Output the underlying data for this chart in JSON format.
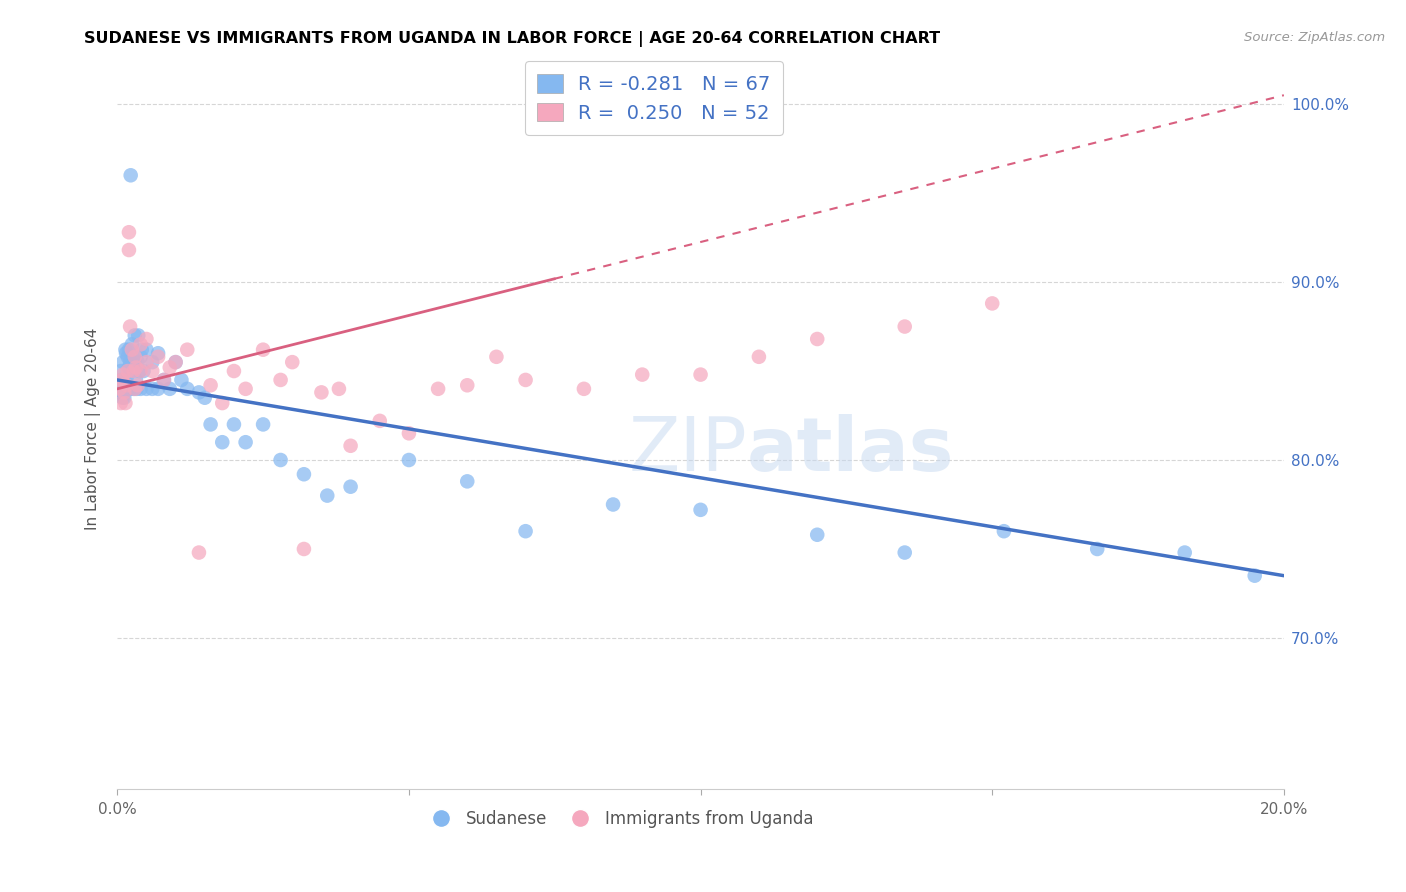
{
  "title": "SUDANESE VS IMMIGRANTS FROM UGANDA IN LABOR FORCE | AGE 20-64 CORRELATION CHART",
  "source": "Source: ZipAtlas.com",
  "ylabel": "In Labor Force | Age 20-64",
  "xlim": [
    0.0,
    0.2
  ],
  "ylim": [
    0.615,
    1.02
  ],
  "xticks": [
    0.0,
    0.05,
    0.1,
    0.15,
    0.2
  ],
  "yticks": [
    0.7,
    0.8,
    0.9,
    1.0
  ],
  "ytick_labels_right": [
    "70.0%",
    "80.0%",
    "90.0%",
    "100.0%"
  ],
  "xtick_labels": [
    "0.0%",
    "",
    "",
    "",
    "20.0%"
  ],
  "R_blue": -0.281,
  "N_blue": 67,
  "R_pink": 0.25,
  "N_pink": 52,
  "blue_scatter_color": "#85b8f0",
  "pink_scatter_color": "#f5a8be",
  "blue_line_color": "#4472c4",
  "pink_line_color": "#d96080",
  "legend_text_color": "#4472c4",
  "watermark_color": "#c5d8f0",
  "sudanese_label": "Sudanese",
  "uganda_label": "Immigrants from Uganda",
  "sudanese_x": [
    0.0004,
    0.0005,
    0.0006,
    0.0007,
    0.0008,
    0.0009,
    0.001,
    0.001,
    0.0012,
    0.0013,
    0.0014,
    0.0015,
    0.0016,
    0.0018,
    0.0018,
    0.002,
    0.002,
    0.0022,
    0.0022,
    0.0023,
    0.0025,
    0.0026,
    0.0028,
    0.003,
    0.003,
    0.0032,
    0.0033,
    0.0035,
    0.0036,
    0.0038,
    0.004,
    0.004,
    0.0042,
    0.0045,
    0.005,
    0.005,
    0.006,
    0.006,
    0.007,
    0.007,
    0.008,
    0.009,
    0.01,
    0.011,
    0.012,
    0.014,
    0.015,
    0.016,
    0.018,
    0.02,
    0.022,
    0.025,
    0.028,
    0.032,
    0.036,
    0.04,
    0.05,
    0.06,
    0.07,
    0.085,
    0.1,
    0.12,
    0.135,
    0.152,
    0.168,
    0.183,
    0.195
  ],
  "sudanese_y": [
    0.84,
    0.838,
    0.85,
    0.845,
    0.842,
    0.835,
    0.855,
    0.84,
    0.835,
    0.842,
    0.862,
    0.86,
    0.845,
    0.858,
    0.84,
    0.852,
    0.862,
    0.855,
    0.84,
    0.96,
    0.865,
    0.85,
    0.84,
    0.855,
    0.87,
    0.845,
    0.84,
    0.855,
    0.87,
    0.85,
    0.858,
    0.84,
    0.862,
    0.85,
    0.862,
    0.84,
    0.855,
    0.84,
    0.86,
    0.84,
    0.845,
    0.84,
    0.855,
    0.845,
    0.84,
    0.838,
    0.835,
    0.82,
    0.81,
    0.82,
    0.81,
    0.82,
    0.8,
    0.792,
    0.78,
    0.785,
    0.8,
    0.788,
    0.76,
    0.775,
    0.772,
    0.758,
    0.748,
    0.76,
    0.75,
    0.748,
    0.735
  ],
  "uganda_x": [
    0.0004,
    0.0006,
    0.0008,
    0.001,
    0.0012,
    0.0014,
    0.0016,
    0.0018,
    0.002,
    0.002,
    0.0022,
    0.0025,
    0.0028,
    0.003,
    0.003,
    0.0032,
    0.0035,
    0.004,
    0.004,
    0.005,
    0.005,
    0.006,
    0.007,
    0.008,
    0.009,
    0.01,
    0.012,
    0.014,
    0.016,
    0.018,
    0.02,
    0.022,
    0.025,
    0.028,
    0.03,
    0.032,
    0.035,
    0.038,
    0.04,
    0.045,
    0.05,
    0.055,
    0.06,
    0.065,
    0.07,
    0.08,
    0.09,
    0.1,
    0.11,
    0.12,
    0.135,
    0.15
  ],
  "uganda_y": [
    0.84,
    0.832,
    0.845,
    0.848,
    0.838,
    0.832,
    0.842,
    0.85,
    0.928,
    0.918,
    0.875,
    0.862,
    0.85,
    0.858,
    0.84,
    0.852,
    0.842,
    0.865,
    0.85,
    0.868,
    0.855,
    0.85,
    0.858,
    0.845,
    0.852,
    0.855,
    0.862,
    0.748,
    0.842,
    0.832,
    0.85,
    0.84,
    0.862,
    0.845,
    0.855,
    0.75,
    0.838,
    0.84,
    0.808,
    0.822,
    0.815,
    0.84,
    0.842,
    0.858,
    0.845,
    0.84,
    0.848,
    0.848,
    0.858,
    0.868,
    0.875,
    0.888
  ],
  "blue_line_x0": 0.0,
  "blue_line_y0": 0.845,
  "blue_line_x1": 0.2,
  "blue_line_y1": 0.735,
  "pink_line_x0": 0.0,
  "pink_line_y0": 0.84,
  "pink_line_x1": 0.2,
  "pink_line_y1": 1.005
}
